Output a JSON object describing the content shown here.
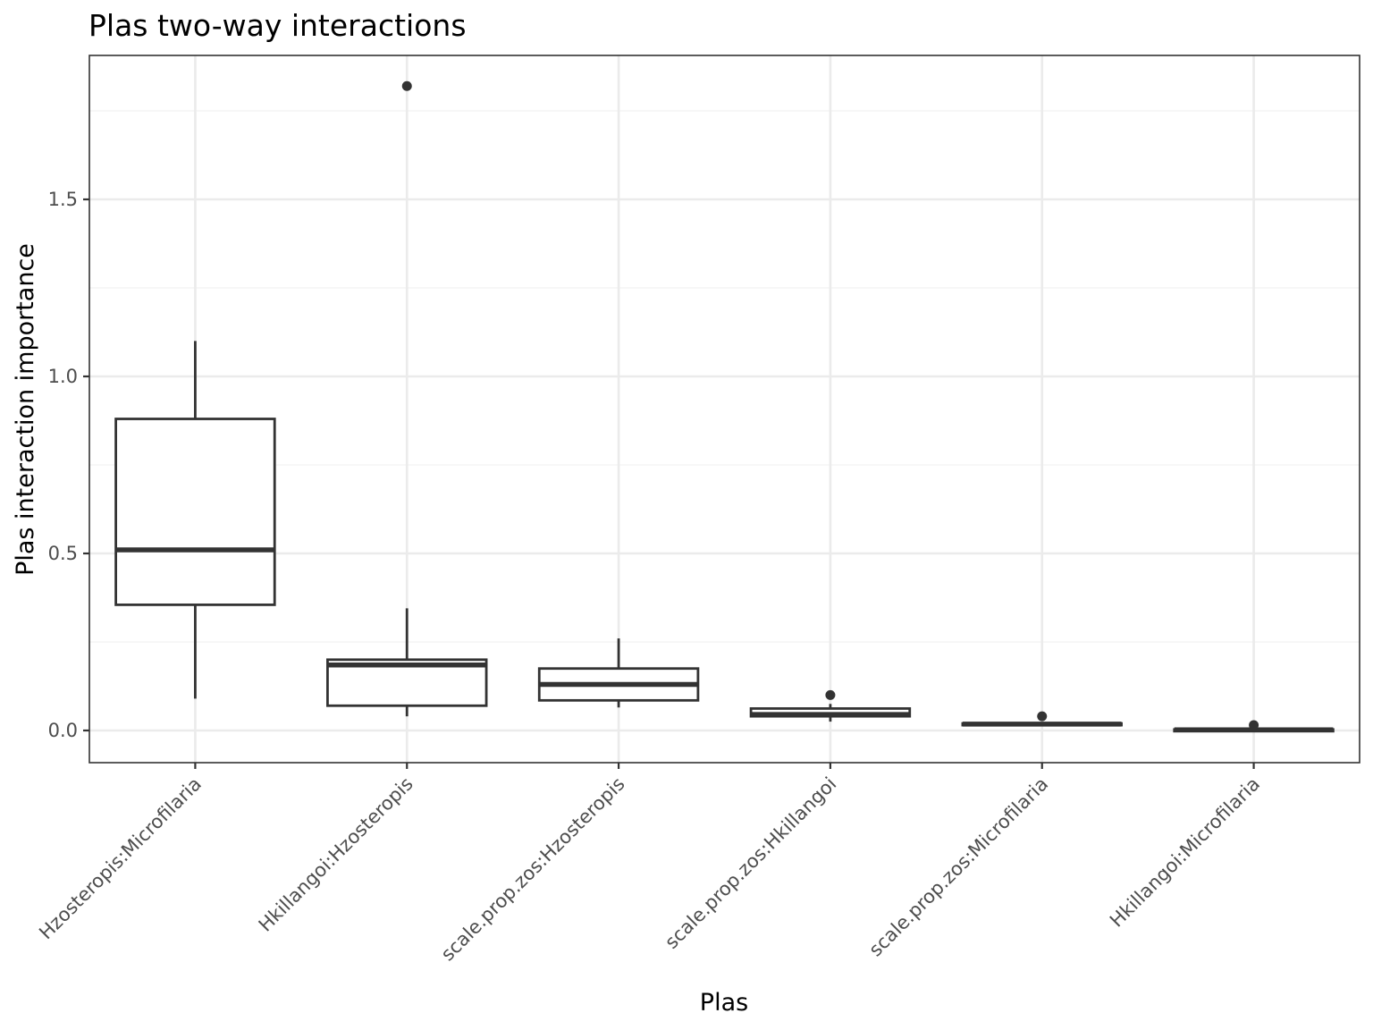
{
  "chart_data": {
    "type": "boxplot",
    "title": "Plas two-way interactions",
    "xlabel": "Plas",
    "ylabel": "Plas interaction importance",
    "ylim": [
      -0.09,
      1.9
    ],
    "yticks": [
      0.0,
      0.5,
      1.0,
      1.5
    ],
    "ytick_labels": [
      "0.0",
      "0.5",
      "1.0",
      "1.5"
    ],
    "yminor": [
      0.25,
      0.75,
      1.25,
      1.75
    ],
    "grid": true,
    "categories": [
      "Hzosteropis:Microfilaria",
      "Hkillangoi:Hzosteropis",
      "scale.prop.zos:Hzosteropis",
      "scale.prop.zos:Hkillangoi",
      "scale.prop.zos:Microfilaria",
      "Hkillangoi:Microfilaria"
    ],
    "boxes": [
      {
        "whisker_low": 0.09,
        "q1": 0.355,
        "median": 0.51,
        "q3": 0.88,
        "whisker_high": 1.1,
        "outliers": []
      },
      {
        "whisker_low": 0.04,
        "q1": 0.07,
        "median": 0.185,
        "q3": 0.2,
        "whisker_high": 0.345,
        "outliers": [
          1.82
        ]
      },
      {
        "whisker_low": 0.065,
        "q1": 0.085,
        "median": 0.13,
        "q3": 0.175,
        "whisker_high": 0.26,
        "outliers": []
      },
      {
        "whisker_low": 0.025,
        "q1": 0.04,
        "median": 0.045,
        "q3": 0.062,
        "whisker_high": 0.075,
        "outliers": [
          0.1
        ]
      },
      {
        "whisker_low": 0.014,
        "q1": 0.016,
        "median": 0.018,
        "q3": 0.02,
        "whisker_high": 0.022,
        "outliers": [
          0.04
        ]
      },
      {
        "whisker_low": 0.0,
        "q1": 0.001,
        "median": 0.002,
        "q3": 0.003,
        "whisker_high": 0.004,
        "outliers": [
          0.015
        ]
      }
    ]
  }
}
